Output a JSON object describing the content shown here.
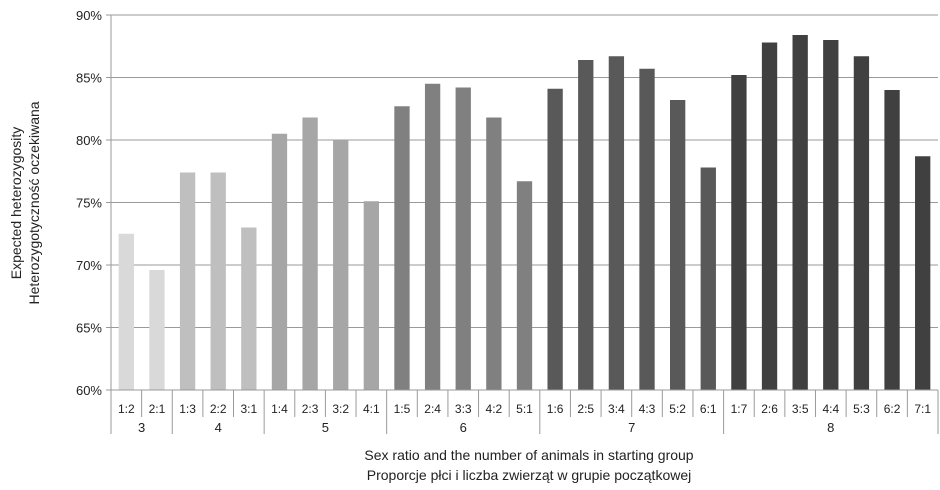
{
  "chart_data": {
    "type": "bar",
    "title": "",
    "ylabel_lines": [
      "Expected heterozygosity",
      "Heterozygotyczność oczekiwana"
    ],
    "xlabel_lines": [
      "Sex ratio and the number of animals in starting group",
      "Proporcje płci i liczba zwierząt w grupie początkowej"
    ],
    "ylim": [
      60,
      90
    ],
    "yticks": [
      60,
      65,
      70,
      75,
      80,
      85,
      90
    ],
    "ytick_labels": [
      "60%",
      "65%",
      "70%",
      "75%",
      "80%",
      "85%",
      "90%"
    ],
    "grid": true,
    "legend": "none",
    "groups": [
      {
        "name": "3",
        "color": "#d9d9d9",
        "categories": [
          "1:2",
          "2:1"
        ],
        "values": [
          72.5,
          69.6
        ]
      },
      {
        "name": "4",
        "color": "#bfbfbf",
        "categories": [
          "1:3",
          "2:2",
          "3:1"
        ],
        "values": [
          77.4,
          77.4,
          73.0
        ]
      },
      {
        "name": "5",
        "color": "#a6a6a6",
        "categories": [
          "1:4",
          "2:3",
          "3:2",
          "4:1"
        ],
        "values": [
          80.5,
          81.8,
          80.0,
          75.1
        ]
      },
      {
        "name": "6",
        "color": "#808080",
        "categories": [
          "1:5",
          "2:4",
          "3:3",
          "4:2",
          "5:1"
        ],
        "values": [
          82.7,
          84.5,
          84.2,
          81.8,
          76.7
        ]
      },
      {
        "name": "7",
        "color": "#595959",
        "categories": [
          "1:6",
          "2:5",
          "3:4",
          "4:3",
          "5:2",
          "6:1"
        ],
        "values": [
          84.1,
          86.4,
          86.7,
          85.7,
          83.2,
          77.8
        ]
      },
      {
        "name": "8",
        "color": "#404040",
        "categories": [
          "1:7",
          "2:6",
          "3:5",
          "4:4",
          "5:3",
          "6:2",
          "7:1"
        ],
        "values": [
          85.2,
          87.8,
          88.4,
          88.0,
          86.7,
          84.0,
          78.7
        ]
      }
    ]
  }
}
